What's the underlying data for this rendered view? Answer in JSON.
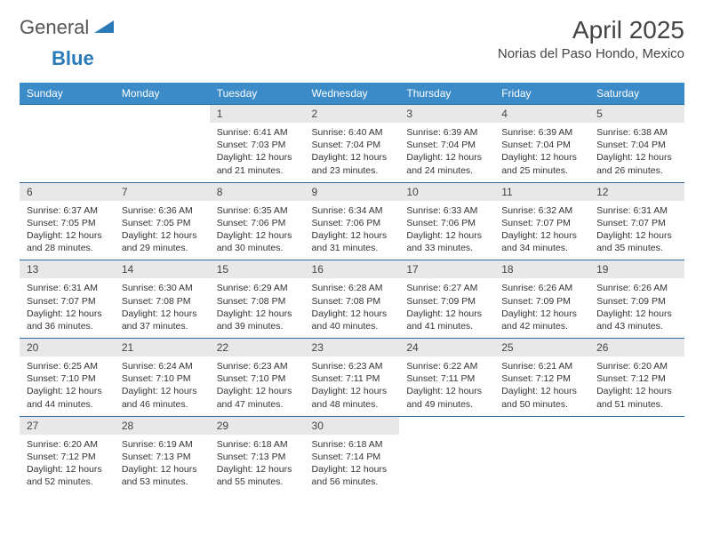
{
  "logo": {
    "general": "General",
    "blue": "Blue"
  },
  "header": {
    "month_title": "April 2025",
    "location": "Norias del Paso Hondo, Mexico"
  },
  "colors": {
    "header_bg": "#3b8bc9",
    "header_text": "#ffffff",
    "day_rule": "#2f6a9c",
    "day_num_bg": "#e8e8e8",
    "body_text": "#333333",
    "logo_accent": "#2a7ab8"
  },
  "daynames": [
    "Sunday",
    "Monday",
    "Tuesday",
    "Wednesday",
    "Thursday",
    "Friday",
    "Saturday"
  ],
  "leading_blanks": 2,
  "days": [
    {
      "n": 1,
      "sunrise": "6:41 AM",
      "sunset": "7:03 PM",
      "daylight": "12 hours and 21 minutes."
    },
    {
      "n": 2,
      "sunrise": "6:40 AM",
      "sunset": "7:04 PM",
      "daylight": "12 hours and 23 minutes."
    },
    {
      "n": 3,
      "sunrise": "6:39 AM",
      "sunset": "7:04 PM",
      "daylight": "12 hours and 24 minutes."
    },
    {
      "n": 4,
      "sunrise": "6:39 AM",
      "sunset": "7:04 PM",
      "daylight": "12 hours and 25 minutes."
    },
    {
      "n": 5,
      "sunrise": "6:38 AM",
      "sunset": "7:04 PM",
      "daylight": "12 hours and 26 minutes."
    },
    {
      "n": 6,
      "sunrise": "6:37 AM",
      "sunset": "7:05 PM",
      "daylight": "12 hours and 28 minutes."
    },
    {
      "n": 7,
      "sunrise": "6:36 AM",
      "sunset": "7:05 PM",
      "daylight": "12 hours and 29 minutes."
    },
    {
      "n": 8,
      "sunrise": "6:35 AM",
      "sunset": "7:06 PM",
      "daylight": "12 hours and 30 minutes."
    },
    {
      "n": 9,
      "sunrise": "6:34 AM",
      "sunset": "7:06 PM",
      "daylight": "12 hours and 31 minutes."
    },
    {
      "n": 10,
      "sunrise": "6:33 AM",
      "sunset": "7:06 PM",
      "daylight": "12 hours and 33 minutes."
    },
    {
      "n": 11,
      "sunrise": "6:32 AM",
      "sunset": "7:07 PM",
      "daylight": "12 hours and 34 minutes."
    },
    {
      "n": 12,
      "sunrise": "6:31 AM",
      "sunset": "7:07 PM",
      "daylight": "12 hours and 35 minutes."
    },
    {
      "n": 13,
      "sunrise": "6:31 AM",
      "sunset": "7:07 PM",
      "daylight": "12 hours and 36 minutes."
    },
    {
      "n": 14,
      "sunrise": "6:30 AM",
      "sunset": "7:08 PM",
      "daylight": "12 hours and 37 minutes."
    },
    {
      "n": 15,
      "sunrise": "6:29 AM",
      "sunset": "7:08 PM",
      "daylight": "12 hours and 39 minutes."
    },
    {
      "n": 16,
      "sunrise": "6:28 AM",
      "sunset": "7:08 PM",
      "daylight": "12 hours and 40 minutes."
    },
    {
      "n": 17,
      "sunrise": "6:27 AM",
      "sunset": "7:09 PM",
      "daylight": "12 hours and 41 minutes."
    },
    {
      "n": 18,
      "sunrise": "6:26 AM",
      "sunset": "7:09 PM",
      "daylight": "12 hours and 42 minutes."
    },
    {
      "n": 19,
      "sunrise": "6:26 AM",
      "sunset": "7:09 PM",
      "daylight": "12 hours and 43 minutes."
    },
    {
      "n": 20,
      "sunrise": "6:25 AM",
      "sunset": "7:10 PM",
      "daylight": "12 hours and 44 minutes."
    },
    {
      "n": 21,
      "sunrise": "6:24 AM",
      "sunset": "7:10 PM",
      "daylight": "12 hours and 46 minutes."
    },
    {
      "n": 22,
      "sunrise": "6:23 AM",
      "sunset": "7:10 PM",
      "daylight": "12 hours and 47 minutes."
    },
    {
      "n": 23,
      "sunrise": "6:23 AM",
      "sunset": "7:11 PM",
      "daylight": "12 hours and 48 minutes."
    },
    {
      "n": 24,
      "sunrise": "6:22 AM",
      "sunset": "7:11 PM",
      "daylight": "12 hours and 49 minutes."
    },
    {
      "n": 25,
      "sunrise": "6:21 AM",
      "sunset": "7:12 PM",
      "daylight": "12 hours and 50 minutes."
    },
    {
      "n": 26,
      "sunrise": "6:20 AM",
      "sunset": "7:12 PM",
      "daylight": "12 hours and 51 minutes."
    },
    {
      "n": 27,
      "sunrise": "6:20 AM",
      "sunset": "7:12 PM",
      "daylight": "12 hours and 52 minutes."
    },
    {
      "n": 28,
      "sunrise": "6:19 AM",
      "sunset": "7:13 PM",
      "daylight": "12 hours and 53 minutes."
    },
    {
      "n": 29,
      "sunrise": "6:18 AM",
      "sunset": "7:13 PM",
      "daylight": "12 hours and 55 minutes."
    },
    {
      "n": 30,
      "sunrise": "6:18 AM",
      "sunset": "7:14 PM",
      "daylight": "12 hours and 56 minutes."
    }
  ],
  "labels": {
    "sunrise_prefix": "Sunrise: ",
    "sunset_prefix": "Sunset: ",
    "daylight_prefix": "Daylight: "
  }
}
